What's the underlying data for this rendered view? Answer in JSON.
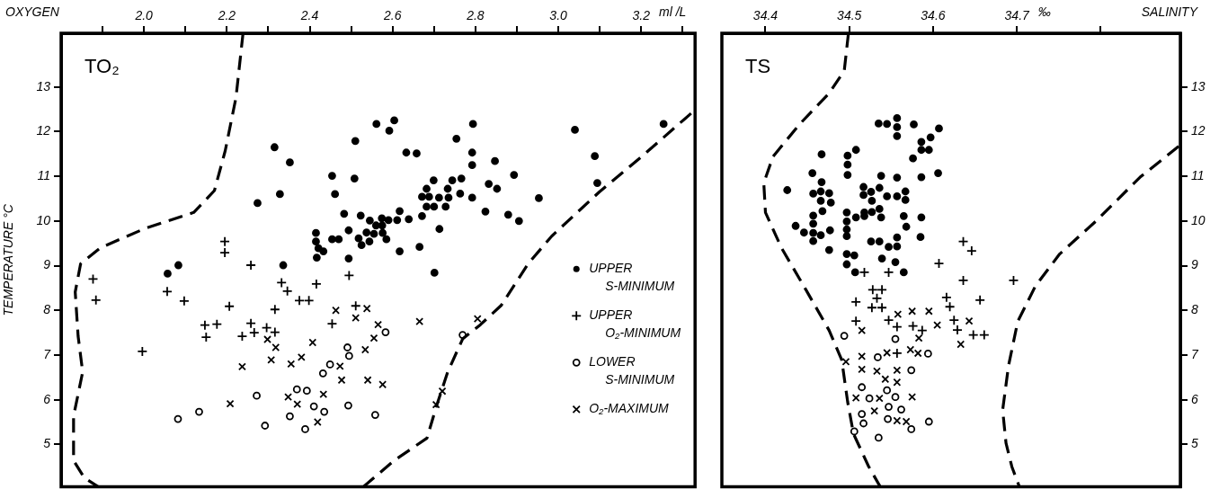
{
  "chart_data": [
    {
      "type": "scatter",
      "title": "TO₂",
      "xlabel": "OXYGEN",
      "ylabel": "TEMPERATURE °C",
      "annotations": [
        "ml /L"
      ],
      "xlim": [
        1.8,
        3.33
      ],
      "ylim": [
        4.05,
        14.2
      ],
      "xticks": [
        {
          "value": 1.9,
          "label": null
        },
        {
          "value": 2.0,
          "label": "2.0"
        },
        {
          "value": 2.1,
          "label": null
        },
        {
          "value": 2.2,
          "label": "2.2"
        },
        {
          "value": 2.3,
          "label": null
        },
        {
          "value": 2.4,
          "label": "2.4"
        },
        {
          "value": 2.5,
          "label": null
        },
        {
          "value": 2.6,
          "label": "2.6"
        },
        {
          "value": 2.7,
          "label": null
        },
        {
          "value": 2.8,
          "label": "2.8"
        },
        {
          "value": 2.9,
          "label": null
        },
        {
          "value": 3.0,
          "label": "3.0"
        },
        {
          "value": 3.1,
          "label": null
        },
        {
          "value": 3.2,
          "label": "3.2"
        },
        {
          "value": 3.3,
          "label": null
        }
      ],
      "yticks": [
        5,
        6,
        7,
        8,
        9,
        10,
        11,
        12,
        13
      ],
      "grid": false,
      "legend": "center right",
      "series": [
        {
          "type": "scatter",
          "name": "UPPER S-MINIMUM",
          "color": "#000000",
          "marker": "circle",
          "x": [
            2.315,
            2.352,
            2.51,
            2.561,
            2.604,
            2.592,
            2.754,
            2.633,
            2.658,
            2.454,
            2.508,
            2.328,
            2.461,
            2.274,
            2.699,
            2.682,
            2.744,
            2.766,
            2.733,
            2.763,
            2.671,
            2.688,
            2.712,
            2.735,
            2.682,
            2.7,
            2.728,
            2.671,
            2.713,
            2.665,
            2.701,
            2.483,
            2.523,
            2.545,
            2.574,
            2.59,
            2.611,
            2.617,
            2.639,
            2.56,
            2.575,
            2.494,
            2.537,
            2.555,
            2.576,
            2.518,
            2.544,
            2.585,
            2.525,
            2.415,
            2.415,
            2.421,
            2.433,
            2.417,
            2.454,
            2.47,
            2.494,
            2.617,
            2.336,
            2.057,
            2.083,
            2.794,
            2.792,
            2.792,
            2.847,
            2.893,
            3.04,
            3.088,
            3.094,
            3.254,
            2.832,
            2.852,
            2.792,
            2.953,
            2.824,
            2.879,
            2.905
          ],
          "values": [
            11.65,
            11.31,
            11.79,
            12.17,
            12.25,
            12.02,
            11.84,
            11.53,
            11.51,
            11.01,
            10.95,
            10.6,
            10.6,
            10.4,
            10.91,
            10.72,
            10.91,
            10.95,
            10.72,
            10.61,
            10.54,
            10.54,
            10.52,
            10.52,
            10.32,
            10.32,
            10.32,
            10.11,
            9.82,
            9.42,
            8.84,
            10.16,
            10.12,
            10.01,
            10.06,
            10.02,
            10.02,
            10.22,
            10.04,
            9.9,
            9.9,
            9.79,
            9.74,
            9.71,
            9.73,
            9.61,
            9.54,
            9.59,
            9.46,
            9.73,
            9.54,
            9.39,
            9.32,
            9.18,
            9.59,
            9.59,
            9.16,
            9.32,
            9.01,
            8.82,
            9.01,
            12.17,
            11.53,
            11.25,
            11.34,
            11.03,
            12.04,
            11.45,
            10.85,
            12.17,
            10.83,
            10.72,
            10.52,
            10.51,
            10.21,
            10.14,
            10.0
          ]
        },
        {
          "type": "scatter",
          "name": "UPPER O₂-MINIMUM",
          "color": "#000000",
          "marker": "cross",
          "x": [
            1.877,
            1.884,
            1.996,
            2.056,
            2.097,
            2.195,
            2.195,
            2.258,
            2.332,
            2.346,
            2.416,
            2.495,
            2.375,
            2.398,
            2.316,
            2.206,
            2.147,
            2.176,
            2.15,
            2.258,
            2.266,
            2.237,
            2.296,
            2.316,
            2.454,
            2.511
          ],
          "values": [
            8.7,
            8.23,
            7.08,
            8.42,
            8.21,
            9.54,
            9.29,
            9.01,
            8.62,
            8.43,
            8.59,
            8.78,
            8.22,
            8.22,
            8.02,
            8.09,
            7.67,
            7.69,
            7.4,
            7.71,
            7.5,
            7.42,
            7.61,
            7.51,
            7.7,
            8.1
          ]
        },
        {
          "type": "scatter",
          "name": "LOWER S-MINIMUM",
          "color": "#000000",
          "marker": "circle-open",
          "x": [
            2.583,
            2.769,
            2.491,
            2.495,
            2.449,
            2.432,
            2.369,
            2.393,
            2.272,
            2.133,
            2.082,
            2.352,
            2.41,
            2.435,
            2.493,
            2.558,
            2.292,
            2.389
          ],
          "values": [
            7.51,
            7.45,
            7.17,
            6.98,
            6.79,
            6.59,
            6.23,
            6.2,
            6.09,
            5.73,
            5.57,
            5.63,
            5.85,
            5.73,
            5.87,
            5.66,
            5.42,
            5.34
          ]
        },
        {
          "type": "scatter",
          "name": "O₂-MAXIMUM",
          "color": "#000000",
          "marker": "x",
          "x": [
            2.463,
            2.538,
            2.511,
            2.565,
            2.665,
            2.805,
            2.298,
            2.318,
            2.407,
            2.307,
            2.237,
            2.355,
            2.38,
            2.555,
            2.534,
            2.473,
            2.477,
            2.54,
            2.576,
            2.72,
            2.705,
            2.208,
            2.348,
            2.37,
            2.433,
            2.419
          ],
          "values": [
            8.0,
            8.04,
            7.83,
            7.68,
            7.75,
            7.81,
            7.35,
            7.17,
            7.28,
            6.89,
            6.74,
            6.8,
            6.95,
            7.38,
            7.12,
            6.75,
            6.44,
            6.44,
            6.34,
            6.19,
            5.89,
            5.91,
            6.06,
            5.9,
            6.12,
            5.5
          ]
        },
        {
          "type": "line",
          "color": "#000000",
          "marker": "none",
          "line_style": "dashed",
          "x": [
            2.239,
            2.222,
            2.196,
            2.17,
            2.12,
            2.002,
            1.895,
            1.847,
            1.834,
            1.841,
            1.852,
            1.83,
            1.83,
            1.856,
            1.89
          ],
          "values": [
            14.2,
            12.76,
            11.57,
            10.68,
            10.19,
            9.83,
            9.4,
            9.04,
            8.41,
            7.42,
            6.62,
            5.63,
            4.64,
            4.25,
            4.05
          ]
        },
        {
          "type": "line",
          "color": "#000000",
          "marker": "none",
          "line_style": "dashed",
          "x": [
            2.529,
            2.604,
            2.683,
            2.705,
            2.733,
            2.769,
            2.812,
            2.862,
            2.927,
            2.984,
            3.099,
            3.206,
            3.328
          ],
          "values": [
            4.05,
            4.64,
            5.14,
            5.83,
            6.62,
            7.36,
            7.68,
            8.11,
            9.04,
            9.66,
            10.65,
            11.48,
            12.47
          ]
        }
      ]
    },
    {
      "type": "scatter",
      "title": "TS",
      "xlabel": "SALINITY",
      "annotations": [
        "‰"
      ],
      "xlim": [
        34.348,
        34.895
      ],
      "ylim": [
        4.05,
        14.2
      ],
      "xticks": [
        {
          "value": 34.4,
          "label": "34.4"
        },
        {
          "value": 34.5,
          "label": "34.5"
        },
        {
          "value": 34.6,
          "label": "34.6"
        },
        {
          "value": 34.7,
          "label": "34.7"
        },
        {
          "value": 34.8,
          "label": null
        }
      ],
      "yticks": [
        5,
        6,
        7,
        8,
        9,
        10,
        11,
        12,
        13
      ],
      "grid": false,
      "series": [
        {
          "type": "scatter",
          "color": "#000000",
          "marker": "circle",
          "x": [
            34.535,
            34.545,
            34.557,
            34.557,
            34.557,
            34.577,
            34.607,
            34.597,
            34.586,
            34.586,
            34.595,
            34.576,
            34.508,
            34.498,
            34.498,
            34.498,
            34.467,
            34.456,
            34.467,
            34.466,
            34.457,
            34.476,
            34.466,
            34.478,
            34.468,
            34.457,
            34.457,
            34.436,
            34.446,
            34.457,
            34.457,
            34.466,
            34.477,
            34.476,
            34.426,
            34.517,
            34.526,
            34.536,
            34.527,
            34.517,
            34.545,
            34.557,
            34.567,
            34.567,
            34.538,
            34.557,
            34.586,
            34.606,
            34.497,
            34.508,
            34.518,
            34.527,
            34.536,
            34.538,
            34.497,
            34.497,
            34.497,
            34.518,
            34.526,
            34.536,
            34.547,
            34.557,
            34.557,
            34.565,
            34.568,
            34.586,
            34.585,
            34.497,
            34.506,
            34.497,
            34.507,
            34.539,
            34.555,
            34.565
          ],
          "values": [
            12.18,
            12.17,
            12.3,
            12.1,
            11.9,
            12.16,
            12.07,
            11.87,
            11.77,
            11.59,
            11.59,
            11.4,
            11.59,
            11.46,
            11.26,
            11.03,
            11.49,
            11.07,
            10.87,
            10.66,
            10.61,
            10.62,
            10.45,
            10.41,
            10.22,
            10.12,
            9.94,
            9.89,
            9.74,
            9.73,
            9.55,
            9.68,
            9.79,
            9.35,
            10.69,
            10.76,
            10.65,
            10.74,
            10.45,
            10.58,
            10.55,
            10.55,
            10.66,
            10.47,
            11.01,
            10.97,
            10.98,
            11.07,
            10.19,
            10.08,
            10.19,
            10.2,
            10.27,
            10.08,
            9.99,
            9.81,
            9.66,
            10.11,
            9.54,
            9.54,
            9.42,
            9.63,
            9.43,
            10.11,
            9.87,
            10.08,
            9.64,
            9.26,
            9.23,
            9.03,
            8.85,
            9.16,
            9.08,
            8.85
          ]
        },
        {
          "type": "scatter",
          "color": "#000000",
          "marker": "cross",
          "x": [
            34.518,
            34.547,
            34.636,
            34.646,
            34.607,
            34.636,
            34.696,
            34.528,
            34.539,
            34.533,
            34.508,
            34.527,
            34.539,
            34.616,
            34.656,
            34.62,
            34.508,
            34.547,
            34.557,
            34.576,
            34.587,
            34.625,
            34.629,
            34.648,
            34.661,
            34.557
          ],
          "values": [
            8.85,
            8.85,
            9.54,
            9.33,
            9.05,
            8.67,
            8.67,
            8.46,
            8.46,
            8.27,
            8.19,
            8.06,
            8.06,
            8.29,
            8.23,
            8.08,
            7.76,
            7.78,
            7.63,
            7.65,
            7.55,
            7.78,
            7.56,
            7.45,
            7.45,
            7.04
          ]
        },
        {
          "type": "scatter",
          "color": "#000000",
          "marker": "circle-open",
          "x": [
            34.494,
            34.555,
            34.534,
            34.594,
            34.574,
            34.515,
            34.545,
            34.524,
            34.555,
            34.547,
            34.562,
            34.515,
            34.546,
            34.517,
            34.574,
            34.595,
            34.506,
            34.535
          ],
          "values": [
            7.43,
            7.36,
            6.95,
            7.03,
            6.66,
            6.28,
            6.21,
            6.03,
            6.06,
            5.84,
            5.78,
            5.68,
            5.57,
            5.47,
            5.34,
            5.51,
            5.29,
            5.15
          ]
        },
        {
          "type": "scatter",
          "color": "#000000",
          "marker": "x",
          "x": [
            34.558,
            34.575,
            34.595,
            34.605,
            34.643,
            34.515,
            34.583,
            34.633,
            34.496,
            34.515,
            34.545,
            34.573,
            34.582,
            34.515,
            34.533,
            34.557,
            34.543,
            34.557,
            34.508,
            34.536,
            34.575,
            34.53,
            34.557,
            34.568
          ],
          "values": [
            7.91,
            7.98,
            7.98,
            7.67,
            7.76,
            7.55,
            7.38,
            7.24,
            6.85,
            6.97,
            7.05,
            7.12,
            7.04,
            6.68,
            6.64,
            6.66,
            6.46,
            6.39,
            6.04,
            6.03,
            6.06,
            5.75,
            5.53,
            5.51
          ]
        },
        {
          "type": "line",
          "color": "#000000",
          "marker": "none",
          "line_style": "dashed",
          "x": [
            34.499,
            34.494,
            34.476,
            34.441,
            34.409,
            34.398,
            34.4,
            34.419,
            34.448,
            34.476,
            34.491,
            34.498,
            34.505,
            34.523,
            34.537
          ],
          "values": [
            14.2,
            13.36,
            12.86,
            12.17,
            11.44,
            10.85,
            10.19,
            9.4,
            8.47,
            7.55,
            6.89,
            5.96,
            5.24,
            4.51,
            4.05
          ]
        },
        {
          "type": "line",
          "color": "#000000",
          "marker": "none",
          "line_style": "dashed",
          "x": [
            34.893,
            34.847,
            34.794,
            34.751,
            34.722,
            34.701,
            34.69,
            34.683,
            34.687,
            34.694,
            34.703
          ],
          "values": [
            11.67,
            10.98,
            9.99,
            9.26,
            8.54,
            7.75,
            6.76,
            5.77,
            5.03,
            4.5,
            4.05
          ]
        }
      ]
    }
  ]
}
